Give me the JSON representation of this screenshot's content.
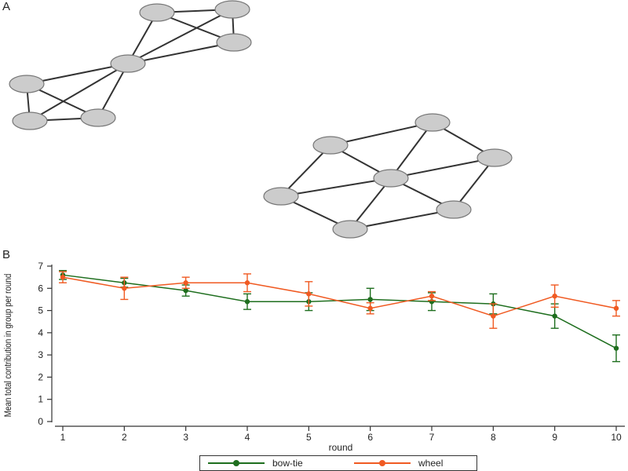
{
  "panels": {
    "a_label": "A",
    "b_label": "B"
  },
  "network_a": {
    "nodes": [
      "a1",
      "a2",
      "a3",
      "hub",
      "b1",
      "b2",
      "b3"
    ],
    "edges": [
      [
        "a1",
        "a2"
      ],
      [
        "a1",
        "a3"
      ],
      [
        "a2",
        "a3"
      ],
      [
        "a1",
        "hub"
      ],
      [
        "a2",
        "hub"
      ],
      [
        "a3",
        "hub"
      ],
      [
        "hub",
        "b1"
      ],
      [
        "hub",
        "b2"
      ],
      [
        "hub",
        "b3"
      ],
      [
        "b1",
        "b2"
      ],
      [
        "b2",
        "b3"
      ],
      [
        "b1",
        "b3"
      ]
    ]
  },
  "network_b": {
    "nodes": [
      "n_tl",
      "n_t",
      "n_r",
      "n_c",
      "n_l",
      "n_br",
      "n_b"
    ],
    "edges": [
      [
        "n_tl",
        "n_l"
      ],
      [
        "n_tl",
        "n_t"
      ],
      [
        "n_t",
        "n_r"
      ],
      [
        "n_r",
        "n_br"
      ],
      [
        "n_br",
        "n_b"
      ],
      [
        "n_b",
        "n_l"
      ],
      [
        "n_tl",
        "n_c"
      ],
      [
        "n_t",
        "n_c"
      ],
      [
        "n_r",
        "n_c"
      ],
      [
        "n_br",
        "n_c"
      ],
      [
        "n_b",
        "n_c"
      ],
      [
        "n_l",
        "n_c"
      ]
    ]
  },
  "chart_data": {
    "type": "line",
    "title": "",
    "xlabel": "round",
    "ylabel": "Mean total contribution in group per round",
    "x": [
      1,
      2,
      3,
      4,
      5,
      6,
      7,
      8,
      9,
      10
    ],
    "xticks": [
      "1",
      "2",
      "3",
      "4",
      "5",
      "6",
      "7",
      "8",
      "9",
      "10"
    ],
    "yticks": [
      "0",
      "1",
      "2",
      "3",
      "4",
      "5",
      "6",
      "7"
    ],
    "ylim": [
      0,
      7.1
    ],
    "grid": false,
    "legend_position": "bottom",
    "series": [
      {
        "name": "bow-tie",
        "color": "#1e6e1e",
        "values": [
          6.6,
          6.25,
          5.9,
          5.4,
          5.4,
          5.5,
          5.4,
          5.3,
          4.75,
          3.3
        ],
        "error": [
          0.2,
          0.2,
          0.25,
          0.35,
          0.4,
          0.5,
          0.4,
          0.45,
          0.55,
          0.6
        ]
      },
      {
        "name": "wheel",
        "color": "#f05a22",
        "values": [
          6.5,
          6.0,
          6.25,
          6.25,
          5.75,
          5.1,
          5.65,
          4.75,
          5.65,
          5.1
        ],
        "error": [
          0.25,
          0.5,
          0.25,
          0.4,
          0.55,
          0.25,
          0.2,
          0.55,
          0.5,
          0.35
        ]
      }
    ]
  }
}
